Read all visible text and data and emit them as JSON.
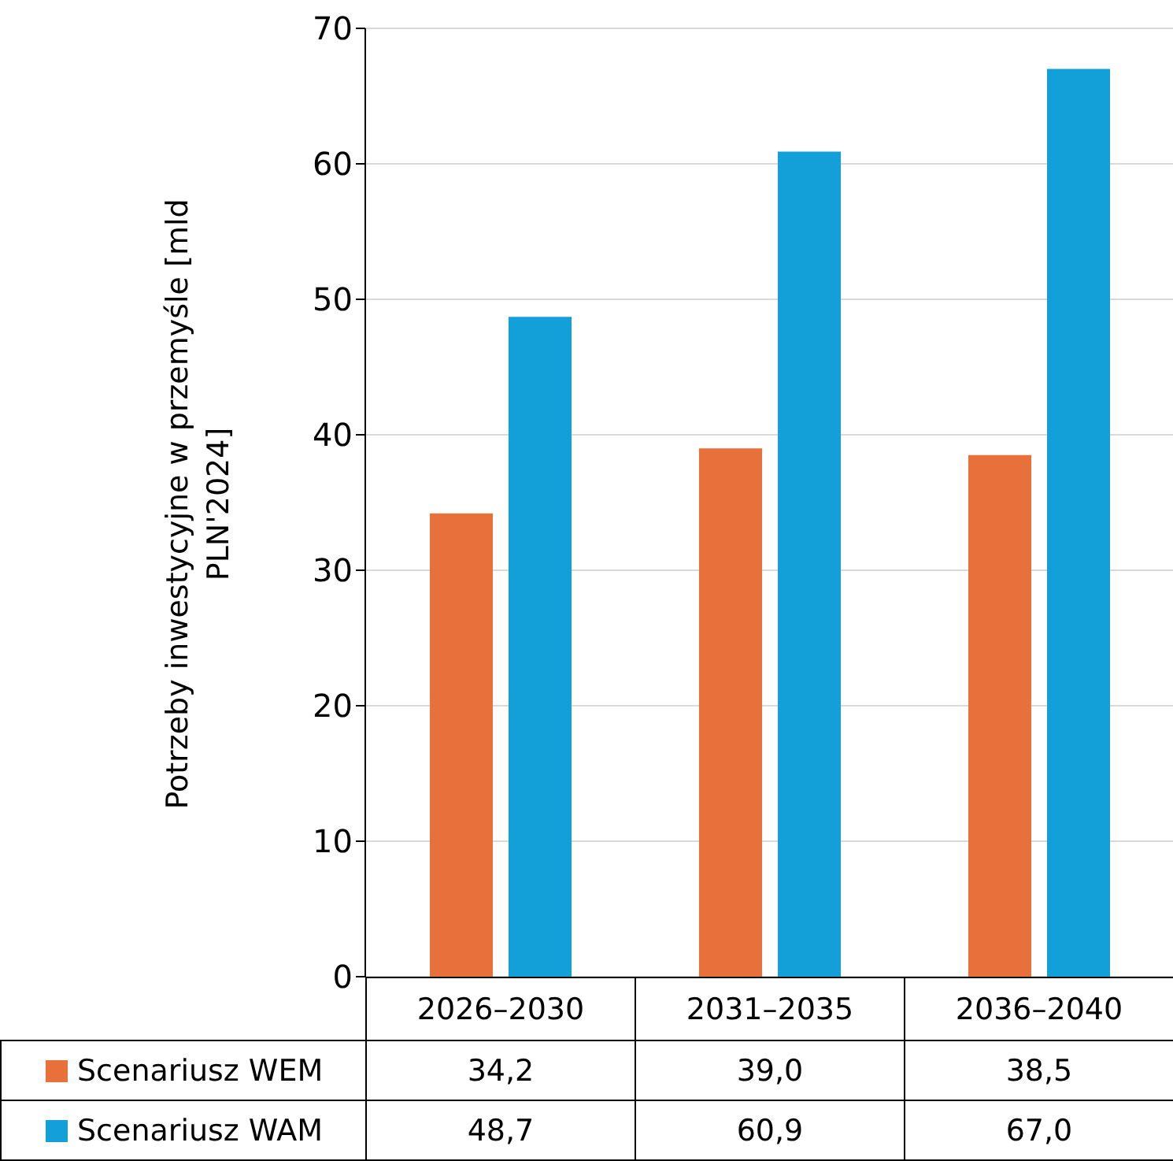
{
  "chart_data": {
    "type": "bar",
    "ylabel": "Potrzeby inwestycyjne w przemyśle [mld PLN'2024]",
    "categories": [
      "2026–2030",
      "2031–2035",
      "2036–2040"
    ],
    "series": [
      {
        "name": "Scenariusz WEM",
        "color": "#e8703a",
        "values": [
          34.2,
          39.0,
          38.5
        ],
        "value_labels": [
          "34,2",
          "39,0",
          "38,5"
        ]
      },
      {
        "name": "Scenariusz WAM",
        "color": "#139fd8",
        "values": [
          48.7,
          60.9,
          67.0
        ],
        "value_labels": [
          "48,7",
          "60,9",
          "67,0"
        ]
      }
    ],
    "ylim": [
      0,
      70
    ],
    "yticks": [
      0,
      10,
      20,
      30,
      40,
      50,
      60,
      70
    ],
    "grid": "y",
    "legend": "bottom"
  }
}
